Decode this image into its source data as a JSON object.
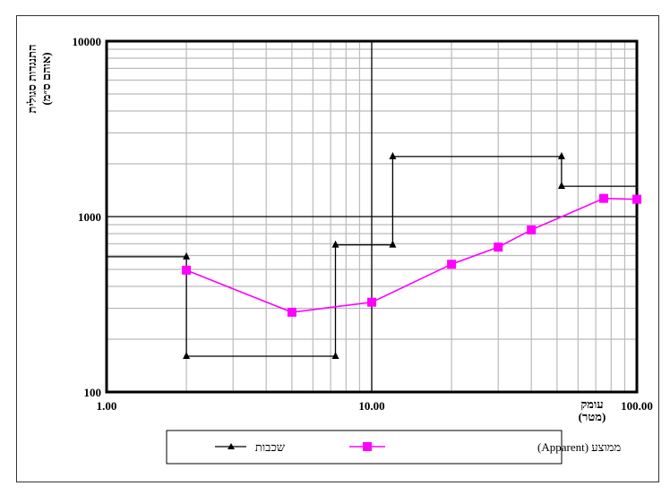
{
  "chart_data": {
    "type": "line",
    "x_scale": "log",
    "y_scale": "log",
    "xlim": [
      1,
      100
    ],
    "ylim": [
      100,
      10000
    ],
    "x_ticks": [
      "1.00",
      "10.00",
      "100.00"
    ],
    "y_ticks": [
      "100",
      "1000",
      "10000"
    ],
    "xlabel_line1": "עומק",
    "xlabel_line2": "(מטר)",
    "ylabel_line1": "התנגדות סגולית",
    "ylabel_line2": "(אוהם ס״מ)",
    "grid": true,
    "legend_position": "bottom",
    "series": [
      {
        "name": "שכבות",
        "color": "#000000",
        "marker": "triangle",
        "step": true,
        "points": [
          [
            1.0,
            590
          ],
          [
            2.0,
            590
          ],
          [
            2.0,
            160
          ],
          [
            7.3,
            160
          ],
          [
            7.3,
            690
          ],
          [
            12.0,
            690
          ],
          [
            12.0,
            2200
          ],
          [
            52.0,
            2200
          ],
          [
            52.0,
            1490
          ],
          [
            100.0,
            1490
          ]
        ],
        "marker_points": [
          [
            2.0,
            590
          ],
          [
            2.0,
            160
          ],
          [
            7.3,
            160
          ],
          [
            7.3,
            690
          ],
          [
            12.0,
            690
          ],
          [
            12.0,
            2200
          ],
          [
            52.0,
            2200
          ],
          [
            52.0,
            1490
          ]
        ]
      },
      {
        "name": "ממוצע (Apparent)",
        "color": "#ff00ff",
        "marker": "square",
        "points": [
          [
            2.0,
            495
          ],
          [
            5.0,
            285
          ],
          [
            10.0,
            325
          ],
          [
            20.0,
            535
          ],
          [
            30.0,
            670
          ],
          [
            40.0,
            840
          ],
          [
            75.0,
            1270
          ],
          [
            100.0,
            1255
          ]
        ]
      }
    ]
  }
}
